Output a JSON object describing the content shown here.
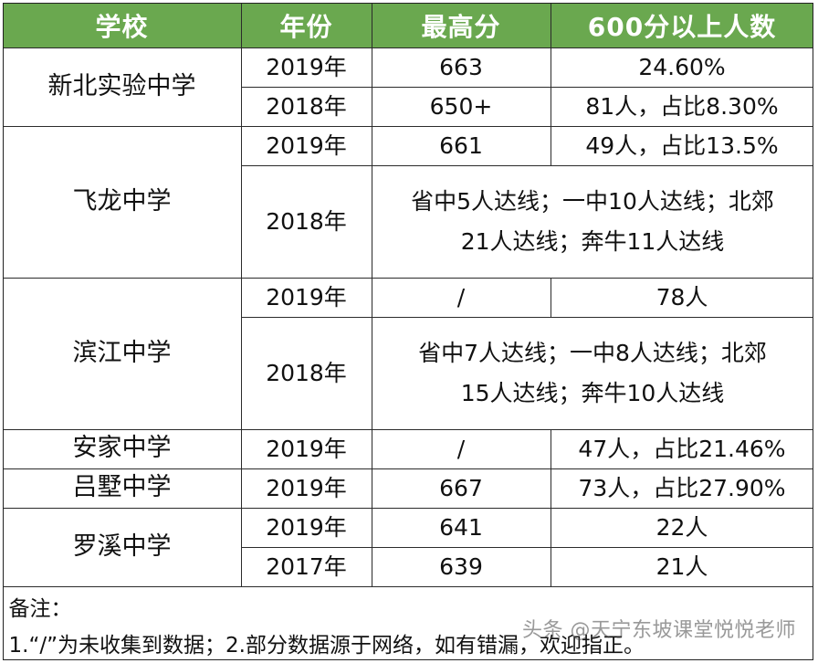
{
  "table": {
    "headers": [
      "学校",
      "年份",
      "最高分",
      "600分以上人数"
    ],
    "rows": [
      {
        "school": "新北实验中学",
        "year": "2019年",
        "top_score": "663",
        "count": "24.60%"
      },
      {
        "year": "2018年",
        "top_score": "650+",
        "count": "81人，占比8.30%"
      },
      {
        "school": "飞龙中学",
        "year": "2019年",
        "top_score": "661",
        "count": "49人，占比13.5%"
      },
      {
        "year": "2018年",
        "note_line1": "省中5人达线；一中10人达线；北郊",
        "note_line2": "21人达线；奔牛11人达线"
      },
      {
        "school": "滨江中学",
        "year": "2019年",
        "top_score": "/",
        "count": "78人"
      },
      {
        "year": "2018年",
        "note_line1": "省中7人达线；一中8人达线；北郊",
        "note_line2": "15人达线；奔牛10人达线"
      },
      {
        "school": "安家中学",
        "year": "2019年",
        "top_score": "/",
        "count": "47人，占比21.46%"
      },
      {
        "school": "吕墅中学",
        "year": "2019年",
        "top_score": "667",
        "count": "73人，占比27.90%"
      },
      {
        "school": "罗溪中学",
        "year": "2019年",
        "top_score": "641",
        "count": "22人"
      },
      {
        "year": "2017年",
        "top_score": "639",
        "count": "21人"
      }
    ]
  },
  "remarks": {
    "label": "备注：",
    "text": "1.“/”为未收集到数据；2.部分数据源于网络，如有错漏，欢迎指正。"
  },
  "watermark": "头条 @天宁东坡课堂悦悦老师",
  "colors": {
    "header_bg": "#6aa84f",
    "header_text": "#ffffff",
    "border": "#2b2b2b"
  }
}
